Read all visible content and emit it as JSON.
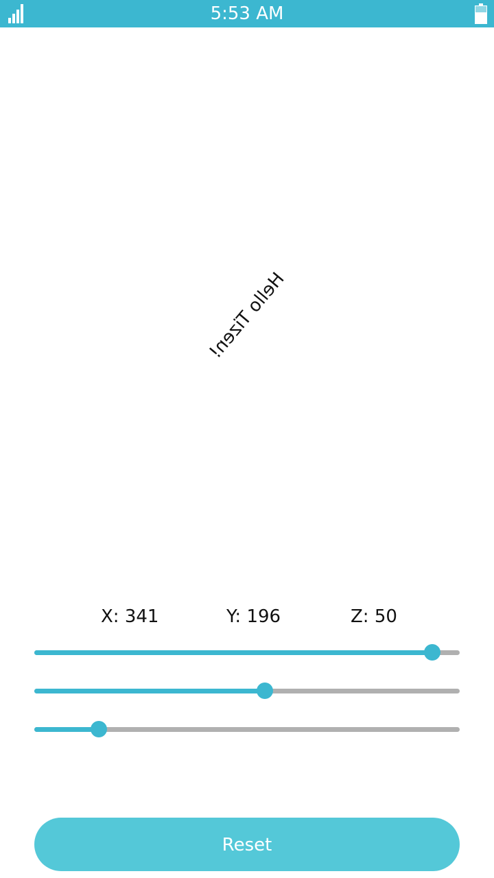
{
  "status_bar": {
    "time": "5:53 AM",
    "color": "#3cb7d0"
  },
  "content": {
    "rotated_text": "Hello Tizen!"
  },
  "coordinates": {
    "x_label": "X: 341",
    "y_label": "Y: 196",
    "z_label": "Z: 50"
  },
  "sliders": [
    {
      "name": "x-slider",
      "value_fraction": 0.935
    },
    {
      "name": "y-slider",
      "value_fraction": 0.542
    },
    {
      "name": "z-slider",
      "value_fraction": 0.151
    }
  ],
  "reset": {
    "label": "Reset"
  },
  "colors": {
    "accent": "#3cb7d0",
    "track": "#b0b0b0",
    "button": "#54c8d8"
  }
}
